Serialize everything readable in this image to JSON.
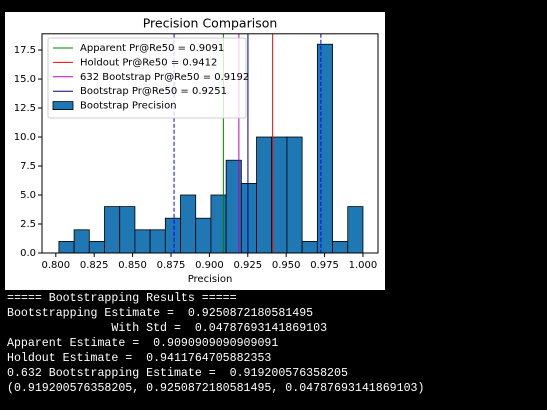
{
  "chart_data": {
    "type": "histogram",
    "title": "Precision Comparison",
    "xlabel": "Precision",
    "name": "Bootstrap Precision",
    "color": "#1f77b4",
    "bins": [
      0.802,
      0.8119,
      0.8218,
      0.8317,
      0.8416,
      0.8515,
      0.8614,
      0.8713,
      0.8812,
      0.8911,
      0.901,
      0.9109,
      0.9208,
      0.9307,
      0.9406,
      0.9505,
      0.9604,
      0.9703,
      0.9802,
      0.9901,
      1.0
    ],
    "values": [
      1,
      2,
      1,
      4,
      4,
      2,
      2,
      3,
      5,
      3,
      5,
      8,
      6,
      10,
      10,
      10,
      1,
      18,
      1,
      4
    ],
    "vlines": [
      {
        "name": "Apparent Pr@Re50 = 0.9091",
        "value": 0.9091,
        "color": "#008000"
      },
      {
        "name": "Holdout Pr@Re50 = 0.9412",
        "value": 0.9412,
        "color": "#ff0000"
      },
      {
        "name": "632 Bootstrap Pr@Re50 = 0.9192",
        "value": 0.9192,
        "color": "#bf00bf"
      },
      {
        "name": "Bootstrap Pr@Re50 = 0.9251",
        "value": 0.9251,
        "color": "#000080"
      }
    ],
    "ci_lines": {
      "values": [
        0.877,
        0.9726
      ],
      "color": "#0000ff"
    },
    "xlim": [
      0.791,
      1.0098
    ],
    "ylim": [
      0,
      18.9
    ],
    "xticks": [
      {
        "value": 0.8,
        "label": "0.800"
      },
      {
        "value": 0.825,
        "label": "0.825"
      },
      {
        "value": 0.85,
        "label": "0.850"
      },
      {
        "value": 0.875,
        "label": "0.875"
      },
      {
        "value": 0.9,
        "label": "0.900"
      },
      {
        "value": 0.925,
        "label": "0.925"
      },
      {
        "value": 0.95,
        "label": "0.950"
      },
      {
        "value": 0.975,
        "label": "0.975"
      },
      {
        "value": 1.0,
        "label": "1.000"
      }
    ],
    "yticks": [
      {
        "value": 0,
        "label": "0.0"
      },
      2.5,
      {
        "value": 5,
        "label": "5.0"
      },
      7.5,
      {
        "value": 10,
        "label": "10.0"
      },
      12.5,
      {
        "value": 15,
        "label": "15.0"
      },
      17.5
    ],
    "legend": "upper left"
  },
  "console": [
    "===== Bootstrapping Results =====",
    "Bootstrapping Estimate =  0.9250872180581495",
    "               With Std =  0.04787693141869103",
    "Apparent Estimate =  0.9090909090909091",
    "Holdout Estimate =  0.9411764705882353",
    "0.632 Bootstrapping Estimate =  0.919200576358205",
    "(0.919200576358205, 0.9250872180581495, 0.04787693141869103)"
  ]
}
